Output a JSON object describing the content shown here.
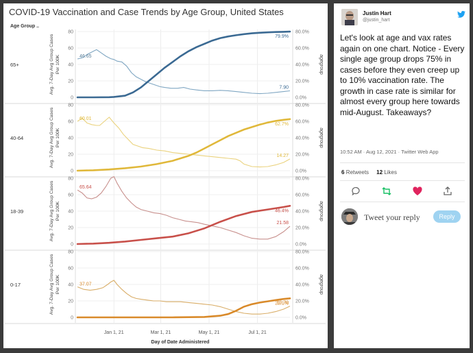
{
  "chart": {
    "title": "COVID-19 Vaccination and Case Trends by Age Group, United States",
    "row_header": "Age Group ..",
    "xlabel": "Day of Date Administered",
    "left_axis_label_line1": "Avg. 7-Day Avg Group Cases",
    "left_axis_label_line2": "Per 100K",
    "right_axis_label": "agegroup",
    "left_ticks": [
      "0",
      "20",
      "40",
      "60",
      "80"
    ],
    "right_ticks": [
      "0.0%",
      "20.0%",
      "40.0%",
      "60.0%",
      "80.0%"
    ],
    "x_ticks": [
      "Jan 1, 21",
      "Mar 1, 21",
      "May 1, 21",
      "Jul 1, 21"
    ]
  },
  "chart_data": {
    "type": "line",
    "title": "COVID-19 Vaccination and Case Trends by Age Group, United States",
    "xlabel": "Day of Date Administered",
    "ylabel": "Avg. 7-Day Avg Group Cases Per 100K",
    "y2label": "agegroup",
    "ylim": [
      0,
      80
    ],
    "y2lim": [
      0,
      80
    ],
    "y2_unit": "%",
    "x_ticks": [
      "Jan 1, 21",
      "Mar 1, 21",
      "May 1, 21",
      "Jul 1, 21"
    ],
    "x_ticks_days": [
      46,
      105,
      166,
      227
    ],
    "x_range_days": [
      0,
      268
    ],
    "grid": true,
    "panels": [
      {
        "age_group": "65+",
        "case_color": "#7fa6c2",
        "vax_color": "#3b6a93",
        "case_first_label": "46.65",
        "case_last_label": "7.90",
        "vax_last_label": "79.9%",
        "case_x": [
          0,
          6,
          12,
          18,
          24,
          30,
          36,
          42,
          46,
          50,
          56,
          62,
          68,
          74,
          80,
          86,
          92,
          98,
          104,
          110,
          118,
          126,
          134,
          142,
          150,
          160,
          170,
          180,
          190,
          200,
          210,
          220,
          230,
          240,
          250,
          260,
          268
        ],
        "case_y": [
          46.65,
          48,
          52,
          55,
          58,
          54,
          50,
          47,
          46,
          44,
          43,
          38,
          30,
          25,
          22,
          19,
          17,
          15,
          13,
          12,
          11,
          11,
          12,
          10,
          9,
          8,
          8,
          8.5,
          8,
          7,
          6,
          5,
          4.5,
          5,
          6,
          7,
          7.9
        ],
        "vax_x": [
          0,
          20,
          40,
          46,
          60,
          70,
          80,
          90,
          100,
          110,
          120,
          130,
          140,
          150,
          160,
          170,
          180,
          190,
          200,
          210,
          220,
          230,
          240,
          250,
          260,
          268
        ],
        "vax_y": [
          0,
          0,
          0.2,
          0.5,
          2,
          6,
          12,
          20,
          28,
          36,
          43,
          50,
          56,
          61,
          65,
          69,
          72,
          74,
          75.5,
          76.8,
          77.8,
          78.5,
          79,
          79.4,
          79.7,
          79.9
        ]
      },
      {
        "age_group": "40-64",
        "case_color": "#ead27d",
        "vax_color": "#e0b83a",
        "case_first_label": "60.01",
        "case_last_label": "14.27",
        "vax_last_label": "62.7%",
        "case_x": [
          0,
          6,
          12,
          18,
          24,
          28,
          34,
          40,
          46,
          52,
          58,
          64,
          70,
          76,
          82,
          90,
          100,
          110,
          120,
          130,
          140,
          150,
          160,
          170,
          180,
          190,
          200,
          205,
          210,
          220,
          230,
          240,
          250,
          260,
          268
        ],
        "case_y": [
          60.01,
          64,
          58,
          56,
          55,
          55,
          60,
          65,
          58,
          52,
          44,
          38,
          32,
          30,
          28,
          27,
          25,
          24,
          22,
          21,
          20,
          19,
          18,
          17,
          16,
          15,
          14,
          12,
          8,
          5,
          4.5,
          5,
          7,
          10,
          14.27
        ],
        "vax_x": [
          0,
          20,
          40,
          60,
          80,
          100,
          120,
          130,
          140,
          150,
          160,
          170,
          180,
          190,
          200,
          210,
          220,
          230,
          240,
          250,
          260,
          268
        ],
        "vax_y": [
          0,
          0.5,
          1.5,
          3,
          5,
          8,
          12,
          15,
          18,
          22,
          27,
          32,
          37,
          42,
          46,
          50,
          53,
          56,
          58.5,
          60.5,
          61.8,
          62.7
        ]
      },
      {
        "age_group": "18-39",
        "case_color": "#c8908d",
        "vax_color": "#c8504a",
        "case_first_label": "65.64",
        "case_last_label": "21.58",
        "vax_last_label": "46.4%",
        "case_x": [
          0,
          6,
          12,
          18,
          24,
          30,
          36,
          42,
          46,
          50,
          56,
          62,
          68,
          74,
          80,
          88,
          96,
          104,
          112,
          120,
          128,
          136,
          144,
          152,
          160,
          170,
          180,
          190,
          200,
          210,
          220,
          230,
          240,
          250,
          260,
          268
        ],
        "case_y": [
          65.64,
          62,
          56,
          55,
          57,
          62,
          70,
          80,
          82,
          74,
          64,
          56,
          50,
          45,
          42,
          40,
          38,
          37,
          35,
          32,
          30,
          28,
          27,
          26,
          24,
          22,
          20,
          17,
          14,
          10,
          7,
          6,
          6,
          9,
          15,
          21.58
        ],
        "vax_x": [
          0,
          20,
          40,
          60,
          80,
          100,
          120,
          140,
          160,
          180,
          200,
          220,
          240,
          260,
          268
        ],
        "vax_y": [
          0,
          0.5,
          1.5,
          3,
          5,
          7,
          9,
          13,
          19,
          27,
          34,
          39,
          42,
          45,
          46.4
        ]
      },
      {
        "age_group": "0-17",
        "case_color": "#d9ad67",
        "vax_color": "#d98a2a",
        "case_first_label": "37.07",
        "case_last_label": "13.70",
        "vax_last_label": "23.1%",
        "case_x": [
          0,
          8,
          16,
          24,
          32,
          38,
          42,
          46,
          50,
          56,
          62,
          68,
          74,
          80,
          88,
          96,
          104,
          112,
          120,
          130,
          140,
          150,
          160,
          170,
          180,
          190,
          200,
          210,
          220,
          230,
          240,
          250,
          260,
          268
        ],
        "case_y": [
          37.07,
          34,
          33,
          34,
          36,
          40,
          43,
          45,
          40,
          34,
          29,
          25,
          23,
          22,
          21,
          20,
          20,
          19,
          19,
          19,
          18,
          17,
          16,
          15,
          13,
          10,
          7,
          5,
          4,
          4,
          5,
          7,
          10,
          13.7
        ],
        "vax_x": [
          0,
          40,
          80,
          120,
          160,
          180,
          190,
          200,
          210,
          220,
          230,
          240,
          250,
          260,
          268
        ],
        "vax_y": [
          0,
          0,
          0,
          0,
          0.5,
          2,
          4,
          8,
          13,
          16,
          18,
          19.5,
          21,
          22.3,
          23.1
        ]
      }
    ]
  },
  "tweet": {
    "author_name": "Justin Hart",
    "author_handle": "@justin_hart",
    "text": "Let's look at age and vax rates again on one chart. Notice - Every single age group drops 75% in cases before they even creep up to 10% vaccination rate. The growth in case rate is similar for almost every group here towards mid-August. Takeaways?",
    "timestamp": "10:52 AM · Aug 12, 2021 · Twitter Web App",
    "retweets_count": "6",
    "retweets_label": "Retweets",
    "likes_count": "12",
    "likes_label": "Likes",
    "reply_placeholder": "Tweet your reply",
    "reply_button": "Reply",
    "icons": [
      "twitter-bird-icon",
      "reply-icon",
      "retweet-icon",
      "like-icon",
      "share-icon"
    ],
    "colors": {
      "accent": "#1da1f2",
      "retweet": "#17bf63",
      "like": "#e0245e",
      "reply_button": "#9fd3f1"
    }
  }
}
